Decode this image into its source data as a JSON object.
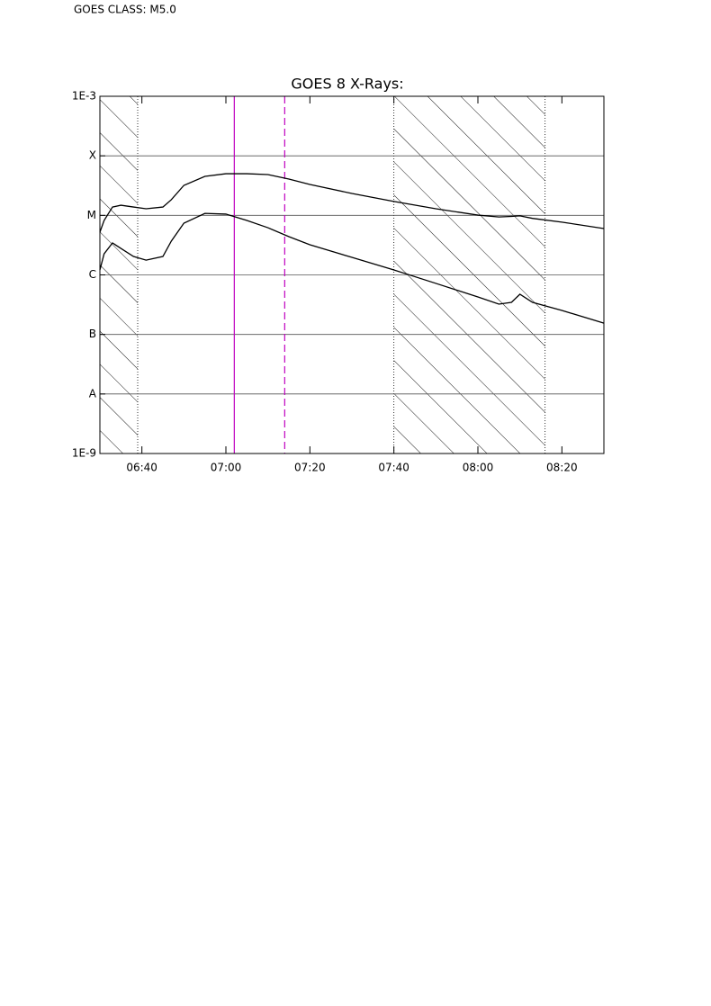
{
  "chart_data": {
    "type": "line",
    "annotation": "GOES CLASS: M5.0",
    "title": "GOES 8 X-Rays:",
    "log_y": true,
    "grid": true,
    "x": [
      "06:30",
      "06:31",
      "06:33",
      "06:35",
      "06:38",
      "06:41",
      "06:45",
      "06:47",
      "06:50",
      "06:55",
      "07:00",
      "07:05",
      "07:10",
      "07:15",
      "07:20",
      "07:30",
      "07:40",
      "07:50",
      "08:00",
      "08:05",
      "08:08",
      "08:10",
      "08:13",
      "08:20",
      "08:30"
    ],
    "xlim": [
      "06:30",
      "08:30"
    ],
    "xticks": [
      "06:40",
      "07:00",
      "07:20",
      "07:40",
      "08:00",
      "08:20"
    ],
    "ylim": [
      1e-09,
      0.001
    ],
    "yticks": [
      {
        "value": 1e-09,
        "label": "1E-9"
      },
      {
        "value": 1e-08,
        "label": "A"
      },
      {
        "value": 1e-07,
        "label": "B"
      },
      {
        "value": 1e-06,
        "label": "C"
      },
      {
        "value": 1e-05,
        "label": "M"
      },
      {
        "value": 0.0001,
        "label": "X"
      },
      {
        "value": 0.001,
        "label": "1E-3"
      }
    ],
    "series": [
      {
        "color": "#000000",
        "values": [
          5.22e-06,
          8.2e-06,
          1.38e-05,
          1.48e-05,
          1.38e-05,
          1.29e-05,
          1.38e-05,
          1.83e-05,
          3.19e-05,
          4.52e-05,
          5e-05,
          5e-05,
          4.84e-05,
          4.07e-05,
          3.3e-05,
          2.33e-05,
          1.71e-05,
          1.29e-05,
          1.01e-05,
          9.4e-06,
          9.6e-06,
          9.8e-06,
          8.9e-06,
          7.7e-06,
          6e-06
        ]
      },
      {
        "color": "#000000",
        "values": [
          1.21e-06,
          2.26e-06,
          3.44e-06,
          2.79e-06,
          2.04e-06,
          1.77e-06,
          2.04e-06,
          3.69e-06,
          7.4e-06,
          1.08e-05,
          1.05e-05,
          8.2e-06,
          6.2e-06,
          4.39e-06,
          3.21e-06,
          1.97e-06,
          1.21e-06,
          7.2e-07,
          4.26e-07,
          3.23e-07,
          3.46e-07,
          4.73e-07,
          3.46e-07,
          2.53e-07,
          1.55e-07
        ]
      }
    ],
    "shaded": [
      [
        "06:30",
        "06:39"
      ],
      [
        "07:40",
        "08:16"
      ]
    ],
    "vlines": [
      {
        "x": "07:02",
        "dashed": false,
        "color": "#c000c0"
      },
      {
        "x": "07:14",
        "dashed": true,
        "color": "#c000c0"
      }
    ]
  }
}
